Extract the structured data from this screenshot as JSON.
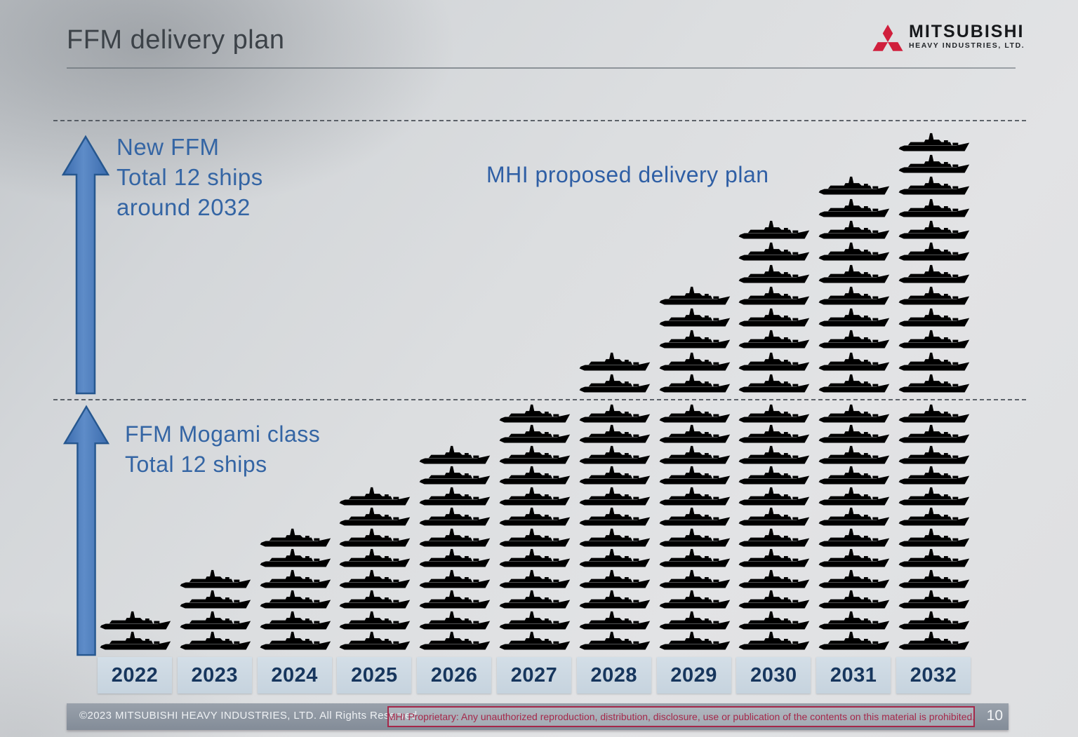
{
  "header": {
    "title": "FFM delivery plan"
  },
  "logo": {
    "brand": "MITSUBISHI",
    "subtitle": "HEAVY INDUSTRIES, LTD."
  },
  "annotations": {
    "upper_arrow_label_lines": {
      "0": "New FFM",
      "1": "Total 12 ships",
      "2": "around 2032"
    },
    "plan_title": "MHI proposed  delivery plan",
    "lower_arrow_label_lines": {
      "0": "FFM Mogami  class",
      "1": "Total 12 ships"
    }
  },
  "chart_data": {
    "type": "bar",
    "subtype": "pictogram-stacked-ship-icons",
    "title": "FFM delivery plan",
    "unit": "ships (cumulative)",
    "categories": [
      "2022",
      "2023",
      "2024",
      "2025",
      "2026",
      "2027",
      "2028",
      "2029",
      "2030",
      "2031",
      "2032"
    ],
    "series": [
      {
        "name": "FFM Mogami class (below dashed line)",
        "icon": "mogami-ship-icon",
        "values": [
          2,
          4,
          6,
          8,
          10,
          12,
          12,
          12,
          12,
          12,
          12
        ]
      },
      {
        "name": "New FFM (above dashed line)",
        "icon": "new-ffm-ship-icon",
        "values": [
          0,
          0,
          0,
          0,
          0,
          0,
          2,
          5,
          8,
          10,
          12
        ]
      }
    ],
    "annotations": [
      "New FFM Total 12 ships around 2032",
      "FFM Mogami class Total 12 ships",
      "MHI proposed  delivery plan"
    ],
    "legend_position": "none",
    "grid": "off"
  },
  "colors": {
    "accent_blue_text": "#3465a4",
    "arrow_fill": "#4a7dc0",
    "arrow_border": "#26578f",
    "year_box_bg": "#ccd8e2",
    "year_text": "#17365d",
    "footer_bar": "#8e97a2",
    "proprietary_red": "#a5284a",
    "logo_red": "#d01f3c"
  },
  "footer": {
    "copyright": "©2023 MITSUBISHI HEAVY INDUSTRIES, LTD.  All Rights Reserved.",
    "proprietary": "MHI Proprietary: Any unauthorized reproduction, distribution, disclosure, use or publication of the contents on this material is prohibited.",
    "page_number": "10"
  }
}
